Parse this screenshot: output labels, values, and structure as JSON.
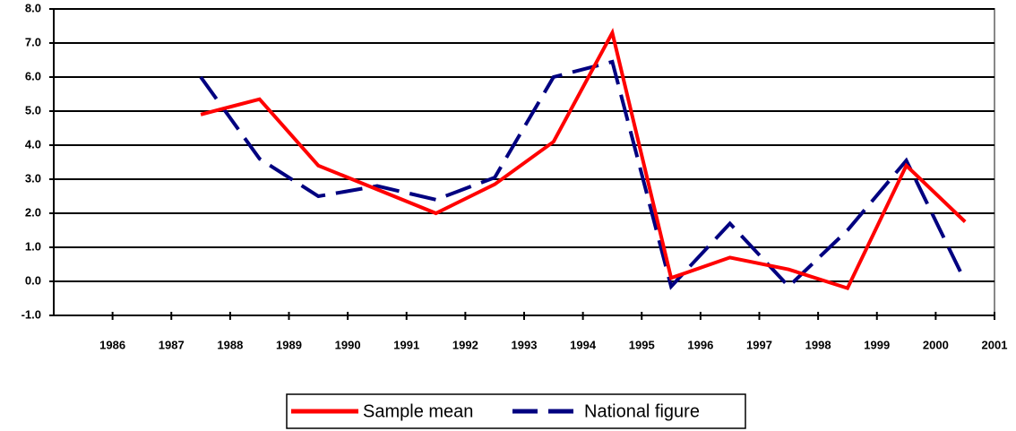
{
  "chart_data": {
    "type": "line",
    "x": [
      1987.5,
      1988.5,
      1989.5,
      1990.5,
      1991.5,
      1992.5,
      1993.5,
      1994.5,
      1995.5,
      1996.5,
      1997.5,
      1998.5,
      1999.5,
      2000.5
    ],
    "series": [
      {
        "name": "Sample mean",
        "color": "#ff0000",
        "line_style": "solid",
        "values": [
          4.9,
          5.35,
          3.4,
          2.7,
          2.0,
          2.85,
          4.1,
          7.3,
          0.1,
          0.7,
          0.35,
          -0.2,
          3.4,
          1.75
        ]
      },
      {
        "name": "National figure",
        "color": "#000080",
        "line_style": "dashed",
        "values": [
          6.0,
          3.6,
          2.5,
          2.8,
          2.4,
          3.05,
          6.0,
          6.45,
          -0.15,
          1.7,
          -0.15,
          1.5,
          3.55,
          0.0
        ]
      }
    ],
    "xlim": [
      1985,
      2001
    ],
    "xticks": [
      1986,
      1987,
      1988,
      1989,
      1990,
      1991,
      1992,
      1993,
      1994,
      1995,
      1996,
      1997,
      1998,
      1999,
      2000,
      2001
    ],
    "ylim": [
      -1,
      8
    ],
    "yticks": [
      {
        "value": -1,
        "label": "-1.0"
      },
      {
        "value": 0,
        "label": "0.0"
      },
      {
        "value": 1,
        "label": "1.0"
      },
      {
        "value": 2,
        "label": "2.0"
      },
      {
        "value": 3,
        "label": "3.0"
      },
      {
        "value": 4,
        "label": "4.0"
      },
      {
        "value": 5,
        "label": "5.0"
      },
      {
        "value": 6,
        "label": "6.0"
      },
      {
        "value": 7,
        "label": "7.0"
      },
      {
        "value": 8,
        "label": "8.0"
      }
    ],
    "grid": true,
    "legend": "bottom"
  }
}
